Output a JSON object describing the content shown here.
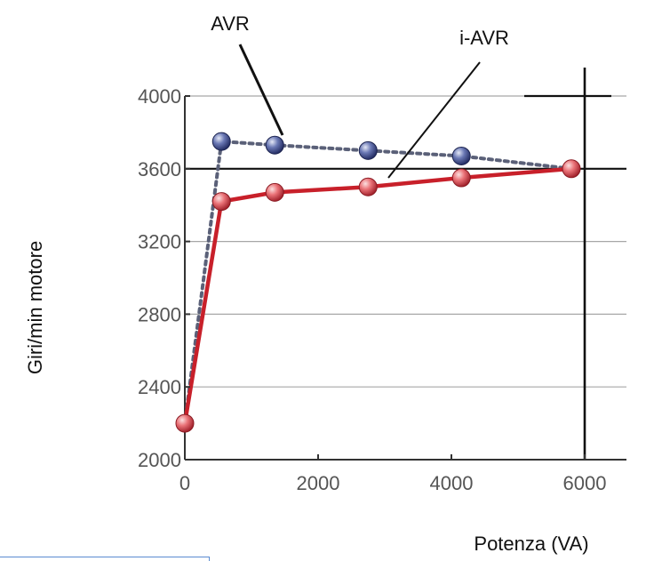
{
  "chart_data": {
    "type": "line",
    "xlabel": "Potenza (VA)",
    "ylabel": "Giri/min motore",
    "xlim": [
      0,
      6000
    ],
    "ylim": [
      2000,
      4000
    ],
    "x_ticks": [
      {
        "value": 0,
        "label": "0"
      },
      {
        "value": 2000,
        "label": "2000"
      },
      {
        "value": 4000,
        "label": "4000"
      },
      {
        "value": 6000,
        "label": "6000"
      }
    ],
    "y_ticks": [
      {
        "value": 2000,
        "label": "2000"
      },
      {
        "value": 2400,
        "label": "2400"
      },
      {
        "value": 2800,
        "label": "2800"
      },
      {
        "value": 3200,
        "label": "3200"
      },
      {
        "value": 3600,
        "label": "3600"
      },
      {
        "value": 4000,
        "label": "4000"
      }
    ],
    "grid": true,
    "series": [
      {
        "name": "AVR",
        "line_style": "dotted",
        "color": "#5a6078",
        "marker_color": "#3b4a8a",
        "points": [
          {
            "x": 0,
            "y": 2200
          },
          {
            "x": 550,
            "y": 3750
          },
          {
            "x": 1350,
            "y": 3730
          },
          {
            "x": 2750,
            "y": 3700
          },
          {
            "x": 4150,
            "y": 3670
          },
          {
            "x": 5800,
            "y": 3600
          }
        ]
      },
      {
        "name": "i-AVR",
        "line_style": "solid",
        "color": "#c8202a",
        "marker_color": "#e05a64",
        "points": [
          {
            "x": 0,
            "y": 2200
          },
          {
            "x": 550,
            "y": 3420
          },
          {
            "x": 1350,
            "y": 3470
          },
          {
            "x": 2750,
            "y": 3500
          },
          {
            "x": 4150,
            "y": 3550
          },
          {
            "x": 5800,
            "y": 3600
          }
        ]
      }
    ],
    "annotations": [
      {
        "text": "AVR",
        "series": "AVR",
        "point_index": 2
      },
      {
        "text": "i-AVR",
        "series": "i-AVR",
        "point_index": 3
      }
    ]
  }
}
